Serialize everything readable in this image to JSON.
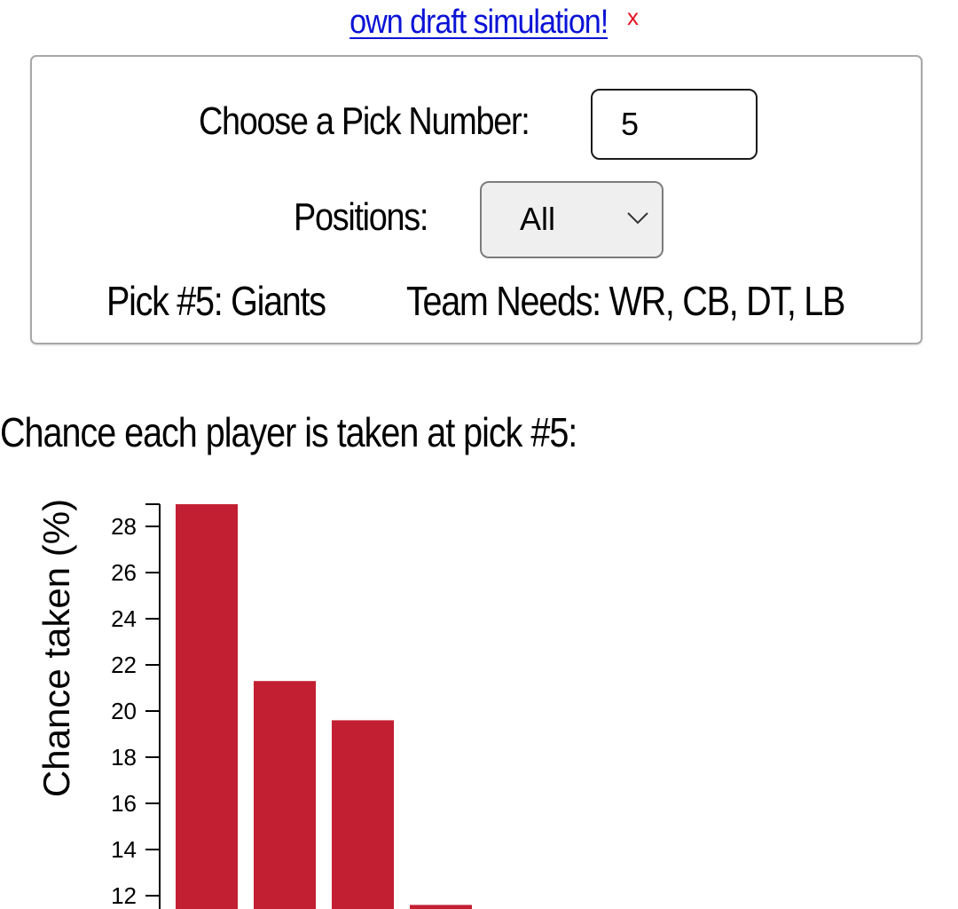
{
  "banner": {
    "link_text": "own draft simulation!",
    "close_label": "x"
  },
  "controls": {
    "pick_label": "Choose a Pick Number:",
    "pick_value": "5",
    "positions_label": "Positions:",
    "positions_value": "All",
    "pick_info": "Pick #5: Giants",
    "team_needs": "Team Needs: WR, CB, DT, LB"
  },
  "chart_heading": "Chance each player is taken at pick #5:",
  "colors": {
    "bar": "#c21f32",
    "link": "#0b13d6",
    "close": "#e0141e"
  },
  "chart_data": {
    "type": "bar",
    "ylabel": "Chance taken (%)",
    "yticks": [
      12,
      14,
      16,
      18,
      20,
      22,
      24,
      26,
      28
    ],
    "ylim": [
      12,
      28.9
    ],
    "values": [
      28.9,
      21.3,
      19.6,
      11.6
    ],
    "color": "#c21f32"
  }
}
